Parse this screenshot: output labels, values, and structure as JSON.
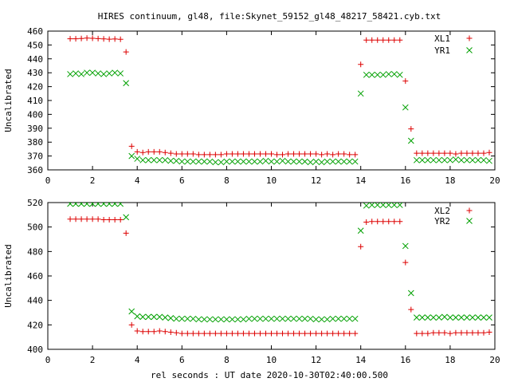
{
  "page": {
    "title": "HIRES continuum, gl48, file:Skynet_59152_gl48_48217_58421.cyb.txt",
    "xlabel": "rel seconds : UT date 2020-10-30T02:40:00.500"
  },
  "chart_data": [
    {
      "type": "scatter",
      "title": "HIRES continuum, gl48, file:Skynet_59152_gl48_48217_58421.cyb.txt",
      "xlabel": "",
      "ylabel": "Uncalibrated",
      "xlim": [
        0,
        20
      ],
      "ylim": [
        360,
        460
      ],
      "xticks": [
        0,
        2,
        4,
        6,
        8,
        10,
        12,
        14,
        16,
        18,
        20
      ],
      "yticks": [
        360,
        370,
        380,
        390,
        400,
        410,
        420,
        430,
        440,
        450,
        460
      ],
      "grid": false,
      "legend_position": "top-right",
      "series": [
        {
          "name": "XL1",
          "marker": "plus",
          "color": "#dd0000",
          "x": [
            1.0,
            1.25,
            1.5,
            1.75,
            2.0,
            2.25,
            2.5,
            2.75,
            3.0,
            3.25,
            3.5,
            3.75,
            4.0,
            4.25,
            4.5,
            4.75,
            5.0,
            5.25,
            5.5,
            5.75,
            6.0,
            6.25,
            6.5,
            6.75,
            7.0,
            7.25,
            7.5,
            7.75,
            8.0,
            8.25,
            8.5,
            8.75,
            9.0,
            9.25,
            9.5,
            9.75,
            10.0,
            10.25,
            10.5,
            10.75,
            11.0,
            11.25,
            11.5,
            11.75,
            12.0,
            12.25,
            12.5,
            12.75,
            13.0,
            13.25,
            13.5,
            13.75,
            14.0,
            14.25,
            14.5,
            14.75,
            15.0,
            15.25,
            15.5,
            15.75,
            16.0,
            16.25,
            16.5,
            16.75,
            17.0,
            17.25,
            17.5,
            17.75,
            18.0,
            18.25,
            18.5,
            18.75,
            19.0,
            19.25,
            19.5,
            19.75
          ],
          "y": [
            454.5,
            454.5,
            454.7,
            455,
            454.8,
            454.6,
            454.4,
            454.2,
            454.3,
            454.1,
            445,
            377,
            373,
            372.5,
            373,
            373,
            373,
            372.5,
            372,
            371.5,
            371.5,
            371.5,
            371.5,
            371,
            371,
            371,
            371,
            371,
            371.5,
            371.5,
            371.5,
            371.5,
            371.5,
            371.5,
            371.5,
            371.5,
            371.5,
            371,
            371,
            371.5,
            371.5,
            371.5,
            371.5,
            371.5,
            371.5,
            371,
            371.5,
            371,
            371.5,
            371.5,
            371,
            371,
            436,
            453.5,
            453.5,
            453.5,
            453.5,
            453.5,
            453.5,
            453.5,
            424,
            389.5,
            372,
            372,
            372,
            372,
            372,
            372,
            372,
            371.5,
            372,
            372,
            372,
            372,
            372,
            372.5
          ]
        },
        {
          "name": "YR1",
          "marker": "cross",
          "color": "#00a000",
          "x": [
            1.0,
            1.25,
            1.5,
            1.75,
            2.0,
            2.25,
            2.5,
            2.75,
            3.0,
            3.25,
            3.5,
            3.75,
            4.0,
            4.25,
            4.5,
            4.75,
            5.0,
            5.25,
            5.5,
            5.75,
            6.0,
            6.25,
            6.5,
            6.75,
            7.0,
            7.25,
            7.5,
            7.75,
            8.0,
            8.25,
            8.5,
            8.75,
            9.0,
            9.25,
            9.5,
            9.75,
            10.0,
            10.25,
            10.5,
            10.75,
            11.0,
            11.25,
            11.5,
            11.75,
            12.0,
            12.25,
            12.5,
            12.75,
            13.0,
            13.25,
            13.5,
            13.75,
            14.0,
            14.25,
            14.5,
            14.75,
            15.0,
            15.25,
            15.5,
            15.75,
            16.0,
            16.25,
            16.5,
            16.75,
            17.0,
            17.25,
            17.5,
            17.75,
            18.0,
            18.25,
            18.5,
            18.75,
            19.0,
            19.25,
            19.5,
            19.75
          ],
          "y": [
            429,
            429.5,
            429,
            430,
            430,
            429.5,
            429,
            429.5,
            430,
            429.5,
            422.5,
            370,
            368,
            367,
            367,
            367,
            367,
            367,
            366.5,
            366.5,
            366,
            366,
            366,
            366,
            366,
            366,
            365.5,
            365.5,
            366,
            366,
            366,
            366,
            366,
            366,
            366,
            366.5,
            366,
            366,
            366.5,
            366,
            366,
            366,
            366,
            365.5,
            366,
            365.5,
            366,
            366,
            366,
            366,
            366,
            366,
            415,
            428.5,
            428.5,
            428.5,
            428.5,
            429,
            429,
            428.5,
            405,
            381,
            367,
            367,
            367,
            367,
            367,
            367,
            367,
            367.5,
            367,
            367,
            367,
            367,
            367,
            366.5
          ]
        }
      ]
    },
    {
      "type": "scatter",
      "title": "",
      "xlabel": "rel seconds : UT date 2020-10-30T02:40:00.500",
      "ylabel": "Uncalibrated",
      "xlim": [
        0,
        20
      ],
      "ylim": [
        400,
        520
      ],
      "xticks": [
        0,
        2,
        4,
        6,
        8,
        10,
        12,
        14,
        16,
        18,
        20
      ],
      "yticks": [
        400,
        420,
        440,
        460,
        480,
        500,
        520
      ],
      "grid": false,
      "legend_position": "top-right",
      "series": [
        {
          "name": "XL2",
          "marker": "plus",
          "color": "#dd0000",
          "x": [
            1.0,
            1.25,
            1.5,
            1.75,
            2.0,
            2.25,
            2.5,
            2.75,
            3.0,
            3.25,
            3.5,
            3.75,
            4.0,
            4.25,
            4.5,
            4.75,
            5.0,
            5.25,
            5.5,
            5.75,
            6.0,
            6.25,
            6.5,
            6.75,
            7.0,
            7.25,
            7.5,
            7.75,
            8.0,
            8.25,
            8.5,
            8.75,
            9.0,
            9.25,
            9.5,
            9.75,
            10.0,
            10.25,
            10.5,
            10.75,
            11.0,
            11.25,
            11.5,
            11.75,
            12.0,
            12.25,
            12.5,
            12.75,
            13.0,
            13.25,
            13.5,
            13.75,
            14.0,
            14.25,
            14.5,
            14.75,
            15.0,
            15.25,
            15.5,
            15.75,
            16.0,
            16.25,
            16.5,
            16.75,
            17.0,
            17.25,
            17.5,
            17.75,
            18.0,
            18.25,
            18.5,
            18.75,
            19.0,
            19.25,
            19.5,
            19.75
          ],
          "y": [
            506.5,
            506.5,
            506.5,
            506.5,
            506.5,
            506.5,
            506,
            506,
            506,
            506,
            495,
            420,
            415,
            414.5,
            414.5,
            414.5,
            415,
            414.5,
            414,
            413.5,
            413,
            413,
            413,
            413,
            413,
            413,
            413,
            413,
            413,
            413,
            413,
            413,
            413,
            413,
            413,
            413,
            413,
            413,
            413,
            413,
            413,
            413,
            413,
            413,
            413,
            413,
            413,
            413,
            413,
            413,
            413,
            413,
            484,
            504,
            504.5,
            504.5,
            504.5,
            504.5,
            504.5,
            504.5,
            471,
            432.5,
            413,
            413,
            413,
            413.5,
            413.5,
            413.5,
            413,
            413.5,
            413.5,
            413.5,
            413.5,
            413.5,
            413.5,
            414
          ]
        },
        {
          "name": "YR2",
          "marker": "cross",
          "color": "#00a000",
          "x": [
            1.0,
            1.25,
            1.5,
            1.75,
            2.0,
            2.25,
            2.5,
            2.75,
            3.0,
            3.25,
            3.5,
            3.75,
            4.0,
            4.25,
            4.5,
            4.75,
            5.0,
            5.25,
            5.5,
            5.75,
            6.0,
            6.25,
            6.5,
            6.75,
            7.0,
            7.25,
            7.5,
            7.75,
            8.0,
            8.25,
            8.5,
            8.75,
            9.0,
            9.25,
            9.5,
            9.75,
            10.0,
            10.25,
            10.5,
            10.75,
            11.0,
            11.25,
            11.5,
            11.75,
            12.0,
            12.25,
            12.5,
            12.75,
            13.0,
            13.25,
            13.5,
            13.75,
            14.0,
            14.25,
            14.5,
            14.75,
            15.0,
            15.25,
            15.5,
            15.75,
            16.0,
            16.25,
            16.5,
            16.75,
            17.0,
            17.25,
            17.5,
            17.75,
            18.0,
            18.25,
            18.5,
            18.75,
            19.0,
            19.25,
            19.5,
            19.75
          ],
          "y": [
            519,
            519,
            519,
            519,
            519,
            519,
            519,
            519,
            519,
            519,
            508,
            431,
            427,
            426.5,
            426.5,
            426.5,
            426.5,
            426,
            425.5,
            425,
            425,
            425,
            425,
            424.5,
            424.5,
            424.5,
            424.5,
            424.5,
            424.5,
            424.5,
            424.5,
            424.5,
            425,
            425,
            425,
            425,
            425,
            425,
            425,
            425,
            425,
            425,
            425,
            425,
            424.5,
            424.5,
            424.5,
            425,
            425,
            425,
            425,
            425,
            497,
            517.5,
            518,
            518,
            518,
            518,
            518,
            518,
            484.5,
            446,
            426,
            426,
            426,
            426,
            426,
            426.5,
            426,
            426,
            426,
            426,
            426,
            426,
            426,
            426
          ]
        }
      ]
    }
  ]
}
